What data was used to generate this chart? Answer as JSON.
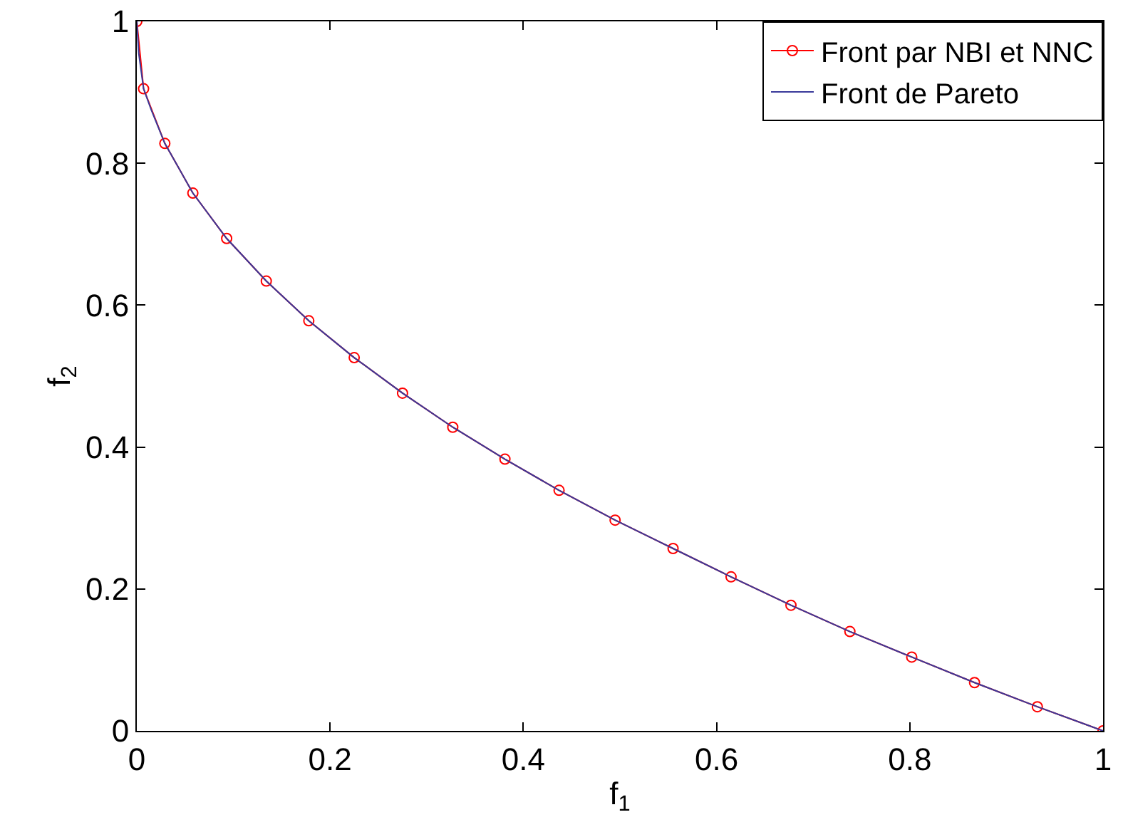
{
  "chart_data": {
    "type": "line",
    "xlabel": "f$_{1}$",
    "ylabel": "f$_{2}$",
    "xlim": [
      0,
      1
    ],
    "ylim": [
      0,
      1
    ],
    "xticks": [
      0,
      0.2,
      0.4,
      0.6,
      0.8,
      1
    ],
    "yticks": [
      0,
      0.2,
      0.4,
      0.6,
      0.8,
      1
    ],
    "grid": false,
    "legend": "top right",
    "line_style": "solid",
    "series": [
      {
        "name": "Front par NBI et NNC",
        "color": "#ff0000",
        "marker": "circle",
        "x": [
          0,
          0.007,
          0.029,
          0.058,
          0.093,
          0.134,
          0.178,
          0.225,
          0.275,
          0.327,
          0.381,
          0.437,
          0.495,
          0.555,
          0.615,
          0.677,
          0.738,
          0.802,
          0.867,
          0.932,
          1
        ],
        "values": [
          1,
          0.905,
          0.828,
          0.758,
          0.694,
          0.634,
          0.578,
          0.526,
          0.476,
          0.428,
          0.383,
          0.339,
          0.297,
          0.257,
          0.217,
          0.177,
          0.14,
          0.104,
          0.068,
          0.034,
          0
        ]
      },
      {
        "name": "Front de Pareto",
        "color": "#3a3a9a",
        "marker": "none",
        "x": [
          0,
          0.002,
          0.007,
          0.015,
          0.029,
          0.058,
          0.093,
          0.134,
          0.178,
          0.225,
          0.275,
          0.327,
          0.381,
          0.437,
          0.495,
          0.555,
          0.615,
          0.677,
          0.738,
          0.802,
          0.867,
          0.932,
          1
        ],
        "values": [
          1,
          0.955,
          0.905,
          0.875,
          0.828,
          0.758,
          0.694,
          0.634,
          0.578,
          0.526,
          0.476,
          0.428,
          0.383,
          0.339,
          0.297,
          0.257,
          0.217,
          0.177,
          0.14,
          0.104,
          0.068,
          0.034,
          0
        ]
      }
    ]
  }
}
